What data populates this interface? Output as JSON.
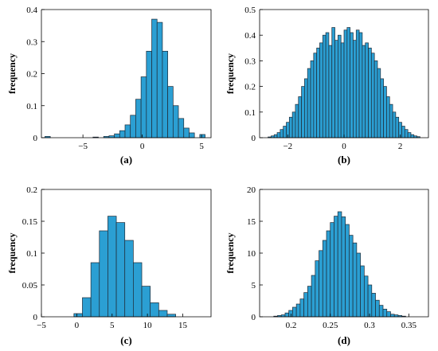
{
  "colors": {
    "bar_fill": "#2b9fd3",
    "bar_edge": "#1f2a36"
  },
  "chart_data": [
    {
      "type": "bar",
      "caption": "(a)",
      "ylabel": "frequency",
      "xlim": [
        -8.5,
        5.8
      ],
      "ylim": [
        0,
        0.4
      ],
      "xticks": [
        -5,
        0,
        5
      ],
      "yticks": [
        0,
        0.1,
        0.2,
        0.3,
        0.4
      ],
      "xtick_labels": [
        "−5",
        "0",
        "5"
      ],
      "ytick_labels": [
        "0",
        "0.1",
        "0.2",
        "0.3",
        "0.4"
      ],
      "bin_start": -8.2,
      "bin_width": 0.45,
      "values": [
        0.004,
        0.0,
        0.0,
        0.0,
        0.0,
        0.0,
        0.0,
        0.0,
        0.0,
        0.002,
        0.0,
        0.004,
        0.006,
        0.012,
        0.022,
        0.04,
        0.07,
        0.12,
        0.19,
        0.27,
        0.37,
        0.36,
        0.27,
        0.16,
        0.1,
        0.06,
        0.03,
        0.015,
        0.0,
        0.01
      ]
    },
    {
      "type": "bar",
      "caption": "(b)",
      "ylabel": "frequency",
      "xlim": [
        -3.0,
        3.0
      ],
      "ylim": [
        0,
        0.5
      ],
      "xticks": [
        -2,
        0,
        2
      ],
      "yticks": [
        0,
        0.1,
        0.2,
        0.3,
        0.4,
        0.5
      ],
      "xtick_labels": [
        "−2",
        "0",
        "2"
      ],
      "ytick_labels": [
        "0",
        "0.1",
        "0.2",
        "0.3",
        "0.4",
        "0.5"
      ],
      "bin_start": -2.7,
      "bin_width": 0.108,
      "values": [
        0.003,
        0.007,
        0.012,
        0.02,
        0.032,
        0.045,
        0.06,
        0.08,
        0.1,
        0.13,
        0.16,
        0.2,
        0.23,
        0.27,
        0.3,
        0.33,
        0.35,
        0.37,
        0.4,
        0.41,
        0.36,
        0.43,
        0.38,
        0.4,
        0.37,
        0.42,
        0.43,
        0.41,
        0.38,
        0.42,
        0.41,
        0.36,
        0.37,
        0.35,
        0.33,
        0.3,
        0.27,
        0.23,
        0.2,
        0.16,
        0.13,
        0.1,
        0.08,
        0.06,
        0.045,
        0.032,
        0.02,
        0.012,
        0.007,
        0.004
      ]
    },
    {
      "type": "bar",
      "caption": "(c)",
      "ylabel": "frequency",
      "xlim": [
        -5,
        19
      ],
      "ylim": [
        0,
        0.2
      ],
      "xticks": [
        -5,
        0,
        5,
        10,
        15
      ],
      "yticks": [
        0,
        0.05,
        0.1,
        0.15,
        0.2
      ],
      "xtick_labels": [
        "−5",
        "0",
        "5",
        "10",
        "15"
      ],
      "ytick_labels": [
        "0",
        "0.05",
        "0.1",
        "0.15",
        "0.2"
      ],
      "bin_start": -0.4,
      "bin_width": 1.2,
      "values": [
        0.005,
        0.03,
        0.085,
        0.135,
        0.158,
        0.148,
        0.12,
        0.085,
        0.048,
        0.022,
        0.01,
        0.004
      ]
    },
    {
      "type": "bar",
      "caption": "(d)",
      "ylabel": "frequency",
      "xlim": [
        0.16,
        0.375
      ],
      "ylim": [
        0,
        20
      ],
      "xticks": [
        0.2,
        0.25,
        0.3,
        0.35
      ],
      "yticks": [
        0,
        5,
        10,
        15,
        20
      ],
      "xtick_labels": [
        "0.2",
        "0.25",
        "0.3",
        "0.35"
      ],
      "ytick_labels": [
        "0",
        "5",
        "10",
        "15",
        "20"
      ],
      "bin_start": 0.178,
      "bin_width": 0.0048,
      "values": [
        0.1,
        0.2,
        0.3,
        0.6,
        1.0,
        1.5,
        2.0,
        2.8,
        3.8,
        4.8,
        6.5,
        8.8,
        10.4,
        12.0,
        13.5,
        14.8,
        15.8,
        16.5,
        15.7,
        14.5,
        12.8,
        11.6,
        10.0,
        8.0,
        6.4,
        5.0,
        3.7,
        2.6,
        1.8,
        1.2,
        0.8,
        0.4,
        0.3,
        0.2,
        0.1
      ]
    }
  ]
}
